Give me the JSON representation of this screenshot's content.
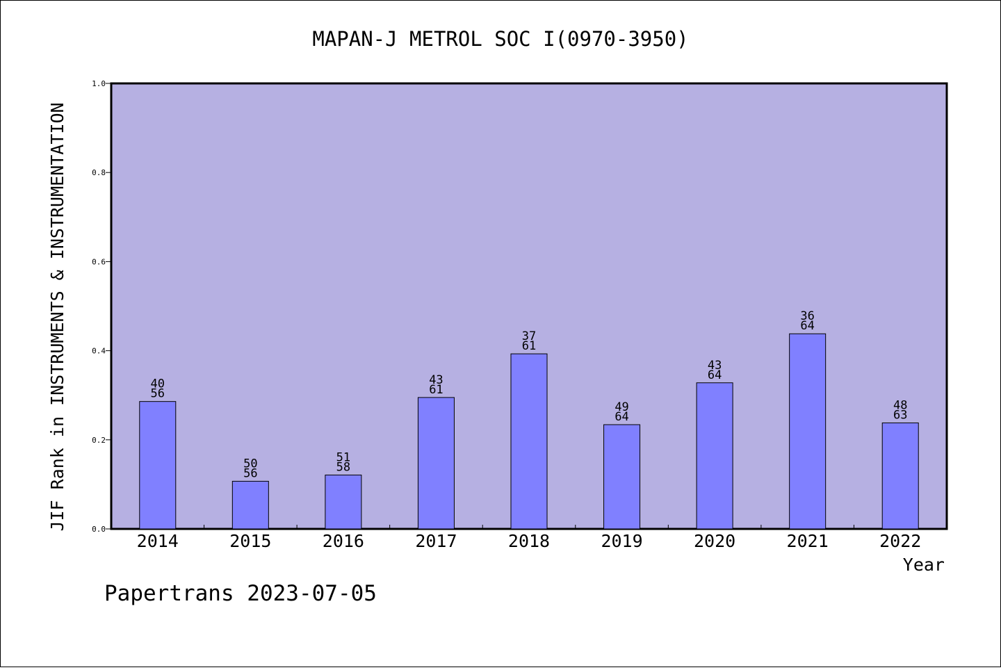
{
  "chart_data": {
    "type": "bar",
    "title": "MAPAN-J METROL SOC I(0970-3950)",
    "xlabel": "Year",
    "ylabel": "JIF Rank in INSTRUMENTS & INSTRUMENTATION",
    "ylim": [
      0,
      1.0
    ],
    "yticks": [
      "0.0",
      "0.2",
      "0.4",
      "0.6",
      "0.8",
      "1.0"
    ],
    "categories": [
      "2014",
      "2015",
      "2016",
      "2017",
      "2018",
      "2019",
      "2020",
      "2021",
      "2022"
    ],
    "values": [
      0.286,
      0.107,
      0.121,
      0.295,
      0.393,
      0.234,
      0.328,
      0.438,
      0.238
    ],
    "labels": [
      [
        "40",
        "56"
      ],
      [
        "50",
        "56"
      ],
      [
        "51",
        "58"
      ],
      [
        "43",
        "61"
      ],
      [
        "37",
        "61"
      ],
      [
        "49",
        "64"
      ],
      [
        "43",
        "64"
      ],
      [
        "36",
        "64"
      ],
      [
        "48",
        "63"
      ]
    ],
    "grid": false,
    "colors": {
      "plot_background": "#b6b0e2",
      "bar_fill": "#8080ff",
      "bar_stroke": "#000000"
    }
  },
  "footer": "Papertrans 2023-07-05"
}
